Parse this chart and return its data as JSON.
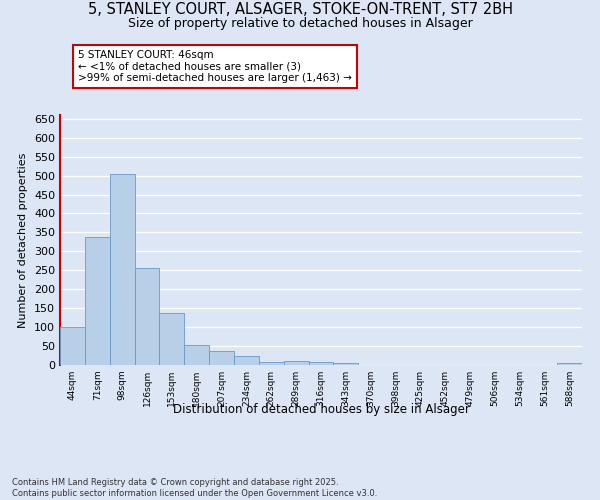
{
  "title_line1": "5, STANLEY COURT, ALSAGER, STOKE-ON-TRENT, ST7 2BH",
  "title_line2": "Size of property relative to detached houses in Alsager",
  "xlabel": "Distribution of detached houses by size in Alsager",
  "ylabel": "Number of detached properties",
  "bar_labels": [
    "44sqm",
    "71sqm",
    "98sqm",
    "126sqm",
    "153sqm",
    "180sqm",
    "207sqm",
    "234sqm",
    "262sqm",
    "289sqm",
    "316sqm",
    "343sqm",
    "370sqm",
    "398sqm",
    "425sqm",
    "452sqm",
    "479sqm",
    "506sqm",
    "534sqm",
    "561sqm",
    "588sqm"
  ],
  "bar_values": [
    100,
    338,
    505,
    255,
    138,
    52,
    36,
    23,
    7,
    10,
    8,
    5,
    0,
    0,
    0,
    0,
    0,
    0,
    0,
    0,
    5
  ],
  "bar_color": "#b8cfe8",
  "bar_edge_color": "#6699cc",
  "annotation_line1": "5 STANLEY COURT: 46sqm",
  "annotation_line2": "← <1% of detached houses are smaller (3)",
  "annotation_line3": ">99% of semi-detached houses are larger (1,463) →",
  "annotation_box_color": "#ffffff",
  "annotation_box_edge": "#cc0000",
  "vline_color": "#cc0000",
  "ylim": [
    0,
    660
  ],
  "yticks": [
    0,
    50,
    100,
    150,
    200,
    250,
    300,
    350,
    400,
    450,
    500,
    550,
    600,
    650
  ],
  "bg_color": "#dce6f5",
  "plot_bg_color": "#dce6f5",
  "grid_color": "#ffffff",
  "footer_line1": "Contains HM Land Registry data © Crown copyright and database right 2025.",
  "footer_line2": "Contains public sector information licensed under the Open Government Licence v3.0."
}
